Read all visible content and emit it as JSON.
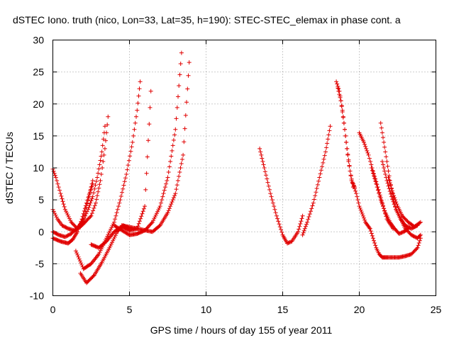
{
  "chart_data": {
    "type": "scatter",
    "title": "dSTEC Iono. truth (nico, Lon=33, Lat=35, h=190): STEC-STEC_elemax in phase cont. a",
    "xlabel": "GPS time / hours of day 155 of year 2011",
    "ylabel": "dSTEC  / TECUs",
    "xlim": [
      0,
      25
    ],
    "ylim": [
      -10,
      30
    ],
    "xticks": [
      "0",
      "5",
      "10",
      "15",
      "20",
      "25"
    ],
    "yticks": [
      "-10",
      "-5",
      "0",
      "5",
      "10",
      "15",
      "20",
      "25",
      "30"
    ],
    "grid": true,
    "marker": "+",
    "color": "#e00000",
    "series": [
      {
        "x": [
          0.0,
          0.3,
          0.6,
          1.0,
          1.4,
          1.8,
          2.1,
          2.5,
          2.8,
          3.1,
          3.4,
          3.6
        ],
        "y": [
          3.5,
          2.0,
          1.0,
          0.5,
          0.2,
          0.8,
          1.5,
          2.5,
          4.5,
          8.0,
          13.0,
          18.0
        ]
      },
      {
        "x": [
          0.0,
          0.4,
          0.8,
          1.2,
          1.6,
          2.0,
          2.3,
          2.6,
          2.9,
          3.2,
          3.4
        ],
        "y": [
          0.0,
          -0.5,
          -0.8,
          -0.3,
          0.6,
          1.8,
          3.5,
          5.5,
          8.5,
          12.5,
          16.5
        ]
      },
      {
        "x": [
          0.0,
          0.2,
          0.5,
          0.8,
          1.2,
          1.6,
          2.0,
          2.3,
          2.6
        ],
        "y": [
          9.8,
          8.5,
          6.0,
          3.5,
          1.5,
          0.5,
          2.0,
          5.0,
          8.0
        ]
      },
      {
        "x": [
          0.0,
          0.5,
          1.0,
          1.3,
          1.6,
          1.9,
          2.2,
          2.6
        ],
        "y": [
          -1.0,
          -1.5,
          -1.8,
          -1.2,
          0.0,
          2.0,
          4.5,
          7.5
        ]
      },
      {
        "x": [
          1.5,
          2.0,
          2.5,
          3.0,
          3.5,
          4.0,
          4.4,
          4.8,
          5.2,
          5.5,
          5.7
        ],
        "y": [
          -3.0,
          -5.8,
          -5.0,
          -3.5,
          -1.0,
          1.5,
          5.0,
          9.0,
          14.0,
          19.0,
          23.5
        ]
      },
      {
        "x": [
          1.8,
          2.2,
          2.7,
          3.2,
          3.7,
          4.2,
          4.6,
          5.0
        ],
        "y": [
          -6.5,
          -8.0,
          -6.8,
          -4.8,
          -2.5,
          0.0,
          1.0,
          0.5
        ]
      },
      {
        "x": [
          2.5,
          3.0,
          3.5,
          4.0,
          4.5,
          5.0,
          5.5,
          6.0,
          6.4
        ],
        "y": [
          -2.0,
          -2.5,
          -1.5,
          0.0,
          0.8,
          0.2,
          0.5,
          4.0,
          22.0
        ]
      },
      {
        "x": [
          4.0,
          5.0,
          5.5,
          6.0,
          6.5,
          7.0,
          7.5,
          8.0,
          8.4
        ],
        "y": [
          1.0,
          -0.5,
          -0.3,
          0.2,
          1.5,
          4.0,
          8.5,
          16.0,
          28.0
        ]
      },
      {
        "x": [
          4.5,
          5.5,
          6.5,
          7.0,
          7.5,
          8.0,
          8.5,
          8.9
        ],
        "y": [
          1.0,
          0.5,
          0.0,
          1.0,
          3.0,
          6.0,
          12.0,
          26.5
        ]
      },
      {
        "x": [
          13.5,
          13.8,
          14.2,
          14.6,
          15.0,
          15.3,
          15.6,
          16.0,
          16.3
        ],
        "y": [
          13.0,
          10.0,
          6.0,
          2.5,
          -0.5,
          -1.8,
          -1.5,
          0.0,
          2.5
        ]
      },
      {
        "x": [
          16.3,
          16.6,
          17.0,
          17.4,
          17.8,
          18.1
        ],
        "y": [
          -0.5,
          1.5,
          4.5,
          8.5,
          12.5,
          16.5
        ]
      },
      {
        "x": [
          18.5,
          18.7,
          18.9,
          19.1,
          19.3,
          19.5,
          19.7
        ],
        "y": [
          23.5,
          22.0,
          19.0,
          15.0,
          11.0,
          8.0,
          7.0
        ]
      },
      {
        "x": [
          18.6,
          18.8,
          19.0,
          19.2,
          19.4,
          19.6
        ],
        "y": [
          22.5,
          20.5,
          17.0,
          13.0,
          9.5,
          7.0
        ]
      },
      {
        "x": [
          19.6,
          19.8,
          20.0,
          20.2,
          20.4,
          20.7
        ],
        "y": [
          7.5,
          6.0,
          4.0,
          2.8,
          1.5,
          0.5
        ]
      },
      {
        "x": [
          20.7,
          20.9,
          21.1,
          21.3,
          21.5,
          21.8,
          22.2,
          22.6,
          23.0,
          23.4,
          23.8,
          24.0
        ],
        "y": [
          0.5,
          -1.0,
          -2.5,
          -3.5,
          -4.0,
          -4.0,
          -4.0,
          -4.0,
          -3.8,
          -3.5,
          -2.5,
          -1.0
        ]
      },
      {
        "x": [
          20.0,
          20.3,
          20.6,
          20.9,
          21.2,
          21.5,
          21.8,
          22.2
        ],
        "y": [
          15.5,
          14.0,
          12.0,
          9.5,
          7.0,
          4.5,
          2.0,
          0.5
        ]
      },
      {
        "x": [
          21.4,
          21.6,
          21.8,
          22.0,
          22.2,
          22.4,
          22.7,
          23.0,
          23.4,
          23.8
        ],
        "y": [
          17.0,
          14.0,
          11.0,
          8.0,
          5.5,
          3.5,
          2.0,
          1.0,
          0.5,
          1.0
        ]
      },
      {
        "x": [
          21.5,
          21.8,
          22.1,
          22.4,
          22.7,
          23.0,
          23.4,
          23.8,
          24.0
        ],
        "y": [
          11.0,
          8.0,
          5.5,
          3.5,
          2.0,
          0.5,
          -0.5,
          -1.0,
          -0.5
        ]
      },
      {
        "x": [
          20.8,
          21.1,
          21.4,
          21.7,
          22.0,
          22.3,
          22.6,
          22.9,
          23.2
        ],
        "y": [
          10.0,
          7.5,
          5.0,
          3.0,
          1.5,
          0.5,
          -0.3,
          0.0,
          0.5
        ]
      },
      {
        "x": [
          21.9,
          22.2,
          22.5,
          22.8,
          23.2,
          23.6,
          24.0
        ],
        "y": [
          8.5,
          6.0,
          4.0,
          2.5,
          1.5,
          0.8,
          1.5
        ]
      }
    ]
  }
}
